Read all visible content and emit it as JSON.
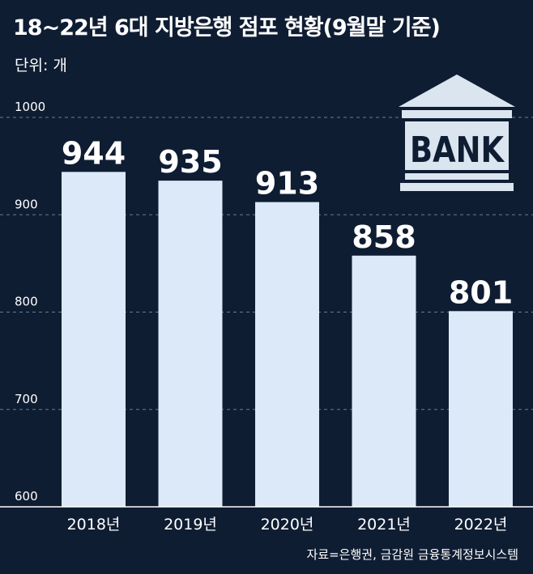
{
  "title": "18~22년 6대 지방은행 점포 현황(9월말 기준)",
  "unit_label": "단위: 개",
  "source": "자료=은행권, 금감원 금융통계정보시스템",
  "icon": {
    "name": "bank-building-icon",
    "text": "BANK",
    "color": "#dbe5f0"
  },
  "colors": {
    "background": "#0f1d33",
    "bar": "#dce9f8",
    "grid": "#6d7a8e",
    "text": "#ffffff"
  },
  "chart_data": {
    "type": "bar",
    "title": "18~22년 6대 지방은행 점포 현황(9월말 기준)",
    "categories": [
      "2018년",
      "2019년",
      "2020년",
      "2021년",
      "2022년"
    ],
    "values": [
      944,
      935,
      913,
      858,
      801
    ],
    "data_labels": [
      "944",
      "935",
      "913",
      "858",
      "801"
    ],
    "ylabel": "단위: 개",
    "xlabel": "",
    "ylim": [
      600,
      1000
    ],
    "yticks": [
      600,
      700,
      800,
      900,
      1000
    ],
    "grid": true,
    "legend": "none"
  }
}
